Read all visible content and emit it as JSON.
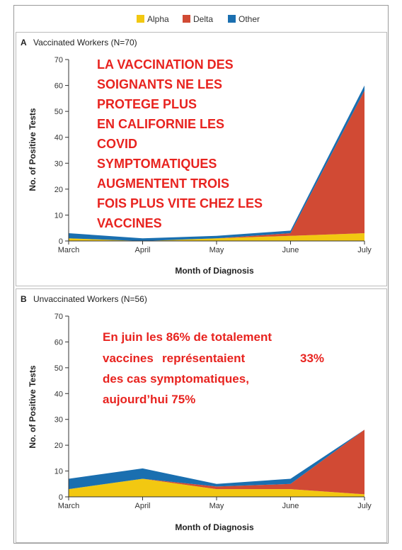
{
  "legend": [
    {
      "name": "Alpha",
      "color": "#f2c811"
    },
    {
      "name": "Delta",
      "color": "#d14a34"
    },
    {
      "name": "Other",
      "color": "#1a6fb0"
    }
  ],
  "chart_data": [
    {
      "type": "area",
      "stacked": true,
      "panel": "A",
      "title": "Vaccinated Workers (N=70)",
      "xlabel": "Month of Diagnosis",
      "ylabel": "No. of Positive Tests",
      "ylim": [
        0,
        70
      ],
      "yticks": [
        "0",
        "10",
        "20",
        "30",
        "40",
        "50",
        "60",
        "70"
      ],
      "categories": [
        "March",
        "April",
        "May",
        "June",
        "July"
      ],
      "series": [
        {
          "name": "Alpha",
          "values": [
            1,
            0,
            1,
            2,
            3
          ]
        },
        {
          "name": "Delta",
          "values": [
            0,
            0,
            0,
            1,
            55
          ]
        },
        {
          "name": "Other",
          "values": [
            2,
            1,
            1,
            1,
            2
          ]
        }
      ],
      "annotation": [
        "LA VACCINATION DES",
        "SOIGNANTS NE LES",
        "PROTEGE PLUS",
        "EN CALIFORNIE LES",
        "COVID",
        "SYMPTOMATIQUES",
        "AUGMENTENT TROIS",
        "FOIS PLUS VITE CHEZ LES",
        "VACCINES"
      ]
    },
    {
      "type": "area",
      "stacked": true,
      "panel": "B",
      "title": "Unvaccinated Workers (N=56)",
      "xlabel": "Month of Diagnosis",
      "ylabel": "No. of Positive Tests",
      "ylim": [
        0,
        70
      ],
      "yticks": [
        "0",
        "10",
        "20",
        "30",
        "40",
        "50",
        "60",
        "70"
      ],
      "categories": [
        "March",
        "April",
        "May",
        "June",
        "July"
      ],
      "series": [
        {
          "name": "Alpha",
          "values": [
            3,
            7,
            3,
            3,
            1
          ]
        },
        {
          "name": "Delta",
          "values": [
            0,
            0,
            1,
            2,
            25
          ]
        },
        {
          "name": "Other",
          "values": [
            4,
            4,
            1,
            2,
            0
          ]
        }
      ],
      "annotation": [
        "En juin les 86% de totalement",
        "vaccines",
        "représentaient",
        "33%",
        "des cas symptomatiques,",
        "aujourd’hui 75%"
      ]
    }
  ]
}
